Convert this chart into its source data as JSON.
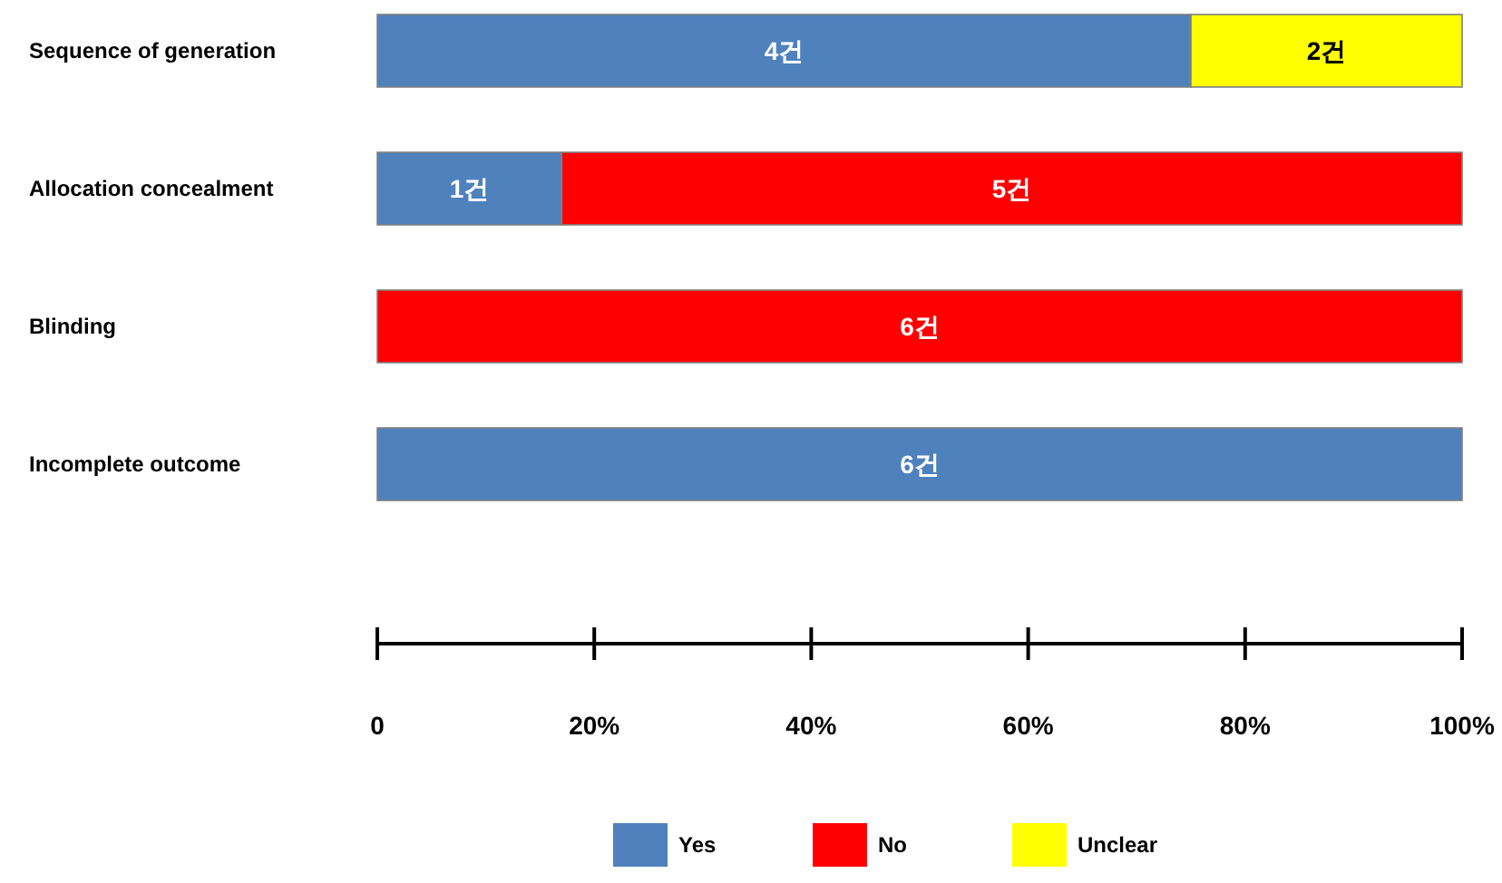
{
  "chart_data": {
    "type": "bar",
    "orientation": "horizontal",
    "stacked": true,
    "categories": [
      "Sequence of generation",
      "Allocation concealment",
      "Blinding",
      "Incomplete outcome"
    ],
    "series": [
      {
        "name": "Yes",
        "color": "#4f81bd",
        "values": [
          75,
          17,
          null,
          100
        ]
      },
      {
        "name": "No",
        "color": "#ff0000",
        "values": [
          null,
          83,
          100,
          null
        ]
      },
      {
        "name": "Unclear",
        "color": "#ffff00",
        "values": [
          25,
          null,
          null,
          null
        ]
      }
    ],
    "xlim": [
      0,
      100
    ],
    "xticks": [
      {
        "value": 0,
        "label": "0"
      },
      {
        "value": 20,
        "label": "20%"
      },
      {
        "value": 40,
        "label": "40%"
      },
      {
        "value": 60,
        "label": "60%"
      },
      {
        "value": 80,
        "label": "80%"
      },
      {
        "value": 100,
        "label": "100%"
      }
    ],
    "annotations": [
      "4건",
      "2건",
      "1건",
      "5건",
      "6건",
      "6건"
    ],
    "legend": "bottom"
  }
}
